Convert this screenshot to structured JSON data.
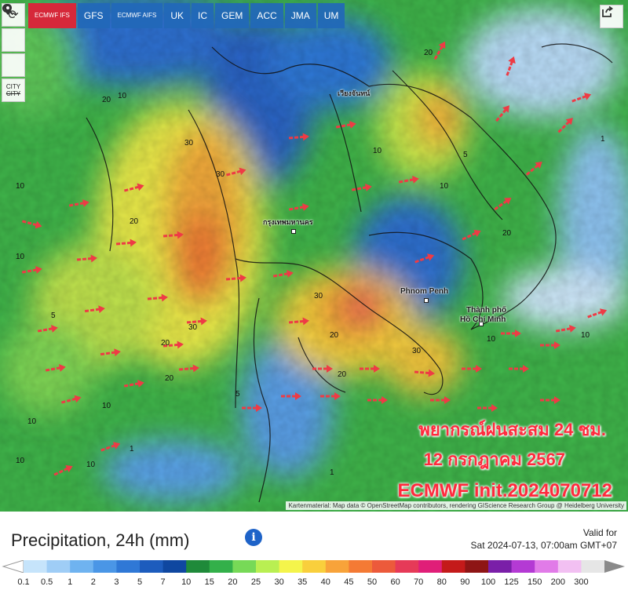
{
  "models": [
    {
      "label": "ECMWF IFS",
      "active": true
    },
    {
      "label": "GFS",
      "active": false
    },
    {
      "label": "ECMWF AIFS",
      "active": false
    },
    {
      "label": "UK",
      "active": false
    },
    {
      "label": "IC",
      "active": false
    },
    {
      "label": "GEM",
      "active": false
    },
    {
      "label": "ACC",
      "active": false
    },
    {
      "label": "JMA",
      "active": false
    },
    {
      "label": "UM",
      "active": false
    }
  ],
  "tools": {
    "refresh_icon": "refresh-icon",
    "location_icon": "location-pin-icon",
    "zoom_icon": "zoom-icon",
    "city_top": "CITY",
    "city_bottom": "CITY"
  },
  "share_icon": "share-icon",
  "overlay": {
    "line1": "พยากรณ์ฝนสะสม 24 ชม.",
    "line2": "12 กรกฎาคม 2567",
    "line3": "ECMWF init.2024070712"
  },
  "places": {
    "bangkok": "กรุงเทพมหานคร",
    "phnom_penh": "Phnom Penh",
    "hcmc_line1": "Thành phố",
    "hcmc_line2": "Hồ Chí Minh",
    "vientiane": "เวียงจันทน์"
  },
  "map_labels": [
    "10",
    "20",
    "30",
    "10",
    "20",
    "10",
    "30",
    "20",
    "10",
    "1",
    "5",
    "10",
    "20",
    "30",
    "10",
    "20",
    "1",
    "10",
    "5",
    "20",
    "10",
    "30",
    "10",
    "20",
    "10",
    "5",
    "1",
    "10",
    "20",
    "30"
  ],
  "attribution": "Kartenmaterial: Map data © OpenStreetMap contributors, rendering GIScience Research Group @ Heidelberg University",
  "legend": {
    "title": "Precipitation, 24h (mm)",
    "valid_label": "Valid for",
    "valid_time": "Sat 2024-07-13, 07:00am GMT+07",
    "ticks": [
      "0.1",
      "0.5",
      "1",
      "2",
      "3",
      "5",
      "7",
      "10",
      "15",
      "20",
      "25",
      "30",
      "35",
      "40",
      "45",
      "50",
      "60",
      "70",
      "80",
      "90",
      "100",
      "125",
      "150",
      "200",
      "300"
    ],
    "colors": [
      "#c6e4fb",
      "#9fcdf6",
      "#6fb3f0",
      "#4a96e6",
      "#2f78d6",
      "#1d5cbd",
      "#0f47a0",
      "#1f8a3a",
      "#33b04a",
      "#77d957",
      "#b9ef52",
      "#f4f44b",
      "#f9cf3c",
      "#f8a33a",
      "#f47a34",
      "#ec5a3b",
      "#e63a58",
      "#e01e78",
      "#c41a1a",
      "#8e1515",
      "#7a1fa8",
      "#b43ad4",
      "#e17be8",
      "#f2c0f2",
      "#e6e6e6"
    ]
  }
}
